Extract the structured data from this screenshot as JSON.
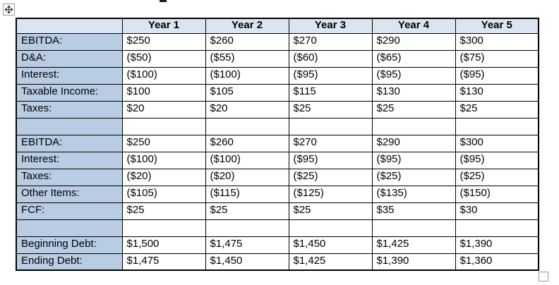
{
  "colors": {
    "header_bg": "#dbe5f1",
    "label_bg": "#b8cce4",
    "grid": "#000000",
    "handle_border": "#9a9a9a"
  },
  "icons": {
    "move_handle": "four-way-move-arrow-icon",
    "resize_handle": "table-resize-square-icon"
  },
  "table": {
    "columns": [
      "",
      "Year 1",
      "Year 2",
      "Year 3",
      "Year 4",
      "Year 5"
    ],
    "rows": [
      {
        "label": "EBITDA:",
        "values": [
          "$250",
          "$260",
          "$270",
          "$290",
          "$300"
        ]
      },
      {
        "label": "D&A:",
        "values": [
          "($50)",
          "($55)",
          "($60)",
          "($65)",
          "($75)"
        ]
      },
      {
        "label": "Interest:",
        "values": [
          "($100)",
          "($100)",
          "($95)",
          "($95)",
          "($95)"
        ]
      },
      {
        "label": "Taxable Income:",
        "values": [
          "$100",
          "$105",
          "$115",
          "$130",
          "$130"
        ]
      },
      {
        "label": "Taxes:",
        "values": [
          "$20",
          "$20",
          "$25",
          "$25",
          "$25"
        ]
      },
      {
        "label": "",
        "values": [
          "",
          "",
          "",
          "",
          ""
        ]
      },
      {
        "label": "EBITDA:",
        "values": [
          "$250",
          "$260",
          "$270",
          "$290",
          "$300"
        ]
      },
      {
        "label": "Interest:",
        "values": [
          "($100)",
          "($100)",
          "($95)",
          "($95)",
          "($95)"
        ]
      },
      {
        "label": "Taxes:",
        "values": [
          "($20)",
          "($20)",
          "($25)",
          "($25)",
          "($25)"
        ]
      },
      {
        "label": "Other Items:",
        "values": [
          "($105)",
          "($115)",
          "($125)",
          "($135)",
          "($150)"
        ]
      },
      {
        "label": "FCF:",
        "values": [
          "$25",
          "$25",
          "$25",
          "$35",
          "$30"
        ]
      },
      {
        "label": "",
        "values": [
          "",
          "",
          "",
          "",
          ""
        ]
      },
      {
        "label": "Beginning Debt:",
        "values": [
          "$1,500",
          "$1,475",
          "$1,450",
          "$1,425",
          "$1,390"
        ]
      },
      {
        "label": "Ending Debt:",
        "values": [
          "$1,475",
          "$1,450",
          "$1,425",
          "$1,390",
          "$1,360"
        ]
      }
    ]
  }
}
